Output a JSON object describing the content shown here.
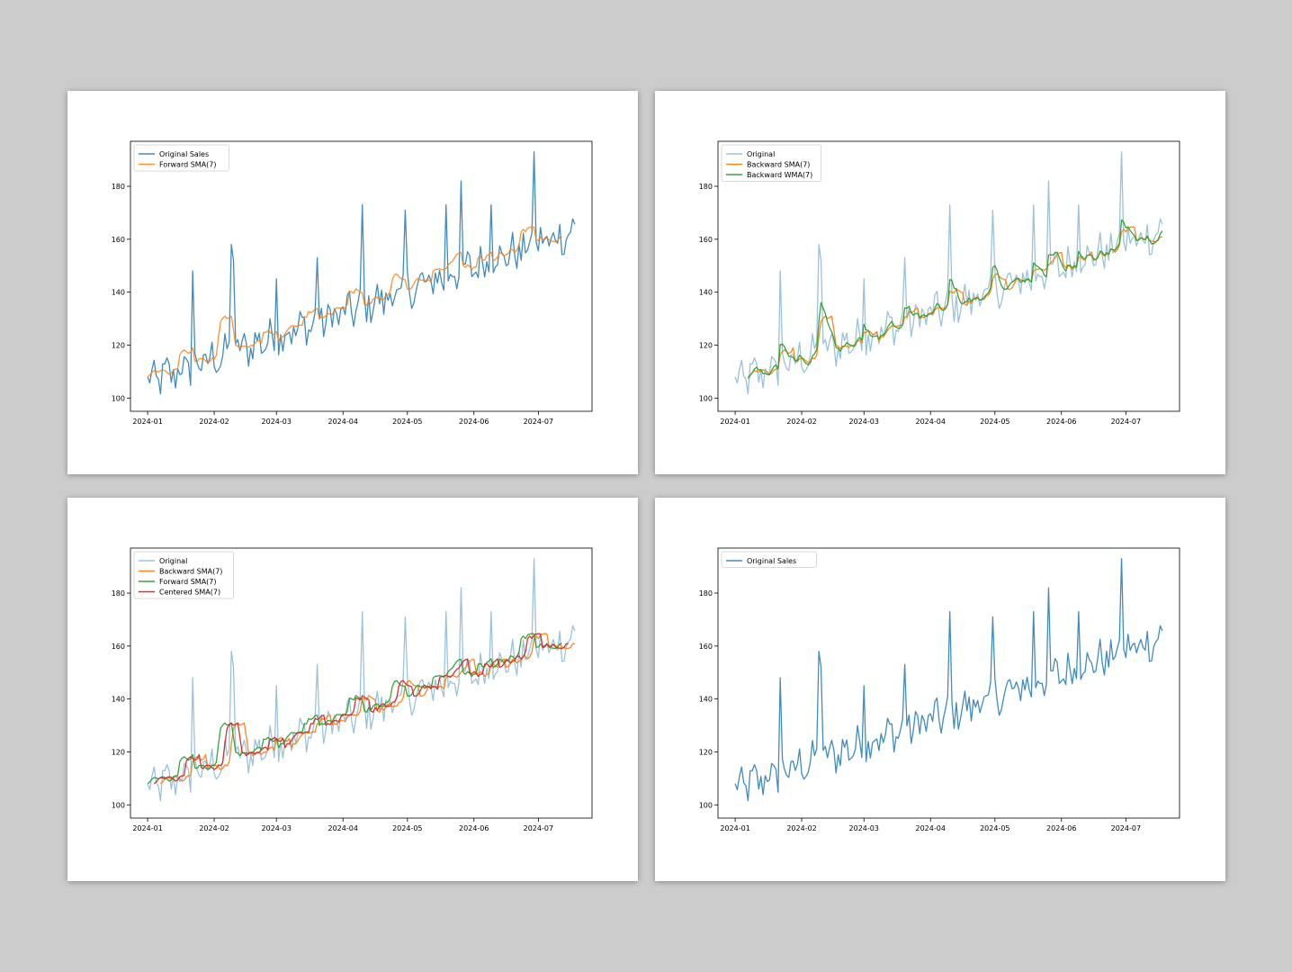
{
  "colors": {
    "blue": "#1f77b4",
    "orange": "#ff7f0e",
    "green": "#2ca02c",
    "red": "#d62728"
  },
  "series_base": {
    "start": "2024-01-01",
    "end": "2024-07-18",
    "trend_start": 106,
    "trend_end": 163,
    "noise": 4,
    "spikes": [
      {
        "date": "2024-01-22",
        "value": 148
      },
      {
        "date": "2024-02-09",
        "value": 158
      },
      {
        "date": "2024-02-10",
        "value": 152
      },
      {
        "date": "2024-03-01",
        "value": 145
      },
      {
        "date": "2024-03-20",
        "value": 153
      },
      {
        "date": "2024-04-10",
        "value": 173
      },
      {
        "date": "2024-04-30",
        "value": 171
      },
      {
        "date": "2024-05-19",
        "value": 173
      },
      {
        "date": "2024-05-26",
        "value": 182
      },
      {
        "date": "2024-06-09",
        "value": 173
      },
      {
        "date": "2024-06-29",
        "value": 193
      }
    ]
  },
  "chart_data": [
    {
      "type": "line",
      "xlim": [
        "2023-12-24",
        "2024-07-26"
      ],
      "ylim": [
        95,
        197
      ],
      "xticks": [
        "2024-01",
        "2024-02",
        "2024-03",
        "2024-04",
        "2024-05",
        "2024-06",
        "2024-07"
      ],
      "yticks": [
        100,
        120,
        140,
        160,
        180
      ],
      "legend": "top-left",
      "series": [
        {
          "name": "Original Sales",
          "kind": "original",
          "color": "#1f77b4",
          "alpha": 0.85
        },
        {
          "name": "Forward SMA(7)",
          "kind": "forward",
          "color": "#ff7f0e",
          "alpha": 0.85
        }
      ]
    },
    {
      "type": "line",
      "xlim": [
        "2023-12-24",
        "2024-07-26"
      ],
      "ylim": [
        95,
        197
      ],
      "xticks": [
        "2024-01",
        "2024-02",
        "2024-03",
        "2024-04",
        "2024-05",
        "2024-06",
        "2024-07"
      ],
      "yticks": [
        100,
        120,
        140,
        160,
        180
      ],
      "legend": "top-left",
      "series": [
        {
          "name": "Original",
          "kind": "original",
          "color": "#1f77b4",
          "alpha": 0.45
        },
        {
          "name": "Backward SMA(7)",
          "kind": "backward",
          "color": "#ff7f0e",
          "alpha": 0.95
        },
        {
          "name": "Backward WMA(7)",
          "kind": "wma",
          "color": "#2ca02c",
          "alpha": 0.95
        }
      ]
    },
    {
      "type": "line",
      "xlim": [
        "2023-12-24",
        "2024-07-26"
      ],
      "ylim": [
        95,
        197
      ],
      "xticks": [
        "2024-01",
        "2024-02",
        "2024-03",
        "2024-04",
        "2024-05",
        "2024-06",
        "2024-07"
      ],
      "yticks": [
        100,
        120,
        140,
        160,
        180
      ],
      "legend": "top-left",
      "series": [
        {
          "name": "Original",
          "kind": "original",
          "color": "#1f77b4",
          "alpha": 0.45
        },
        {
          "name": "Backward SMA(7)",
          "kind": "backward",
          "color": "#ff7f0e",
          "alpha": 0.95
        },
        {
          "name": "Forward  SMA(7)",
          "kind": "forward",
          "color": "#2ca02c",
          "alpha": 0.95
        },
        {
          "name": "Centered SMA(7)",
          "kind": "centered",
          "color": "#d62728",
          "alpha": 0.95
        }
      ]
    },
    {
      "type": "line",
      "xlim": [
        "2023-12-24",
        "2024-07-26"
      ],
      "ylim": [
        95,
        197
      ],
      "xticks": [
        "2024-01",
        "2024-02",
        "2024-03",
        "2024-04",
        "2024-05",
        "2024-06",
        "2024-07"
      ],
      "yticks": [
        100,
        120,
        140,
        160,
        180
      ],
      "legend": "top-left",
      "series": [
        {
          "name": "Original Sales",
          "kind": "original",
          "color": "#1f77b4",
          "alpha": 0.85
        }
      ]
    }
  ]
}
